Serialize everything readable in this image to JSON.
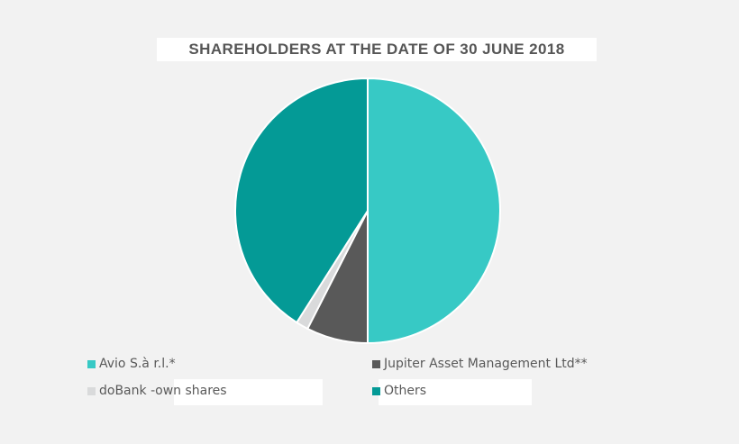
{
  "page": {
    "background_color": "#f2f2f2",
    "highlight_patch_color": "#ffffff"
  },
  "title": {
    "text": "SHAREHOLDERS AT THE DATE OF 30 JUNE 2018",
    "color": "#565656",
    "background": "#ffffff"
  },
  "chart_data": {
    "type": "pie",
    "title": "SHAREHOLDERS AT THE DATE OF 30 JUNE 2018",
    "values_unit": "percent",
    "values_estimated_from_angles": true,
    "start_angle": "12 o'clock, clockwise",
    "legend_position": "bottom",
    "slice_border_color": "#ffffff",
    "slices": [
      {
        "label": "Avio S.à r.l.*",
        "value": 50.0,
        "color": "#37c9c5"
      },
      {
        "label": "Jupiter Asset Management Ltd**",
        "value": 7.5,
        "color": "#595959"
      },
      {
        "label": "doBank - own shares",
        "value": 1.5,
        "color": "#d9dadb"
      },
      {
        "label": "Others",
        "value": 41.0,
        "color": "#049a96"
      }
    ]
  },
  "legend": {
    "text_color": "#595959",
    "items": [
      {
        "label": "Avio S.à r.l.*",
        "color": "#37c9c5"
      },
      {
        "label": "Jupiter Asset Management Ltd**",
        "color": "#595959"
      },
      {
        "label_prefix": "doBank - ",
        "label_highlighted": "own shares",
        "color": "#d9dadb"
      },
      {
        "label": "Others",
        "color": "#049a96"
      }
    ]
  }
}
